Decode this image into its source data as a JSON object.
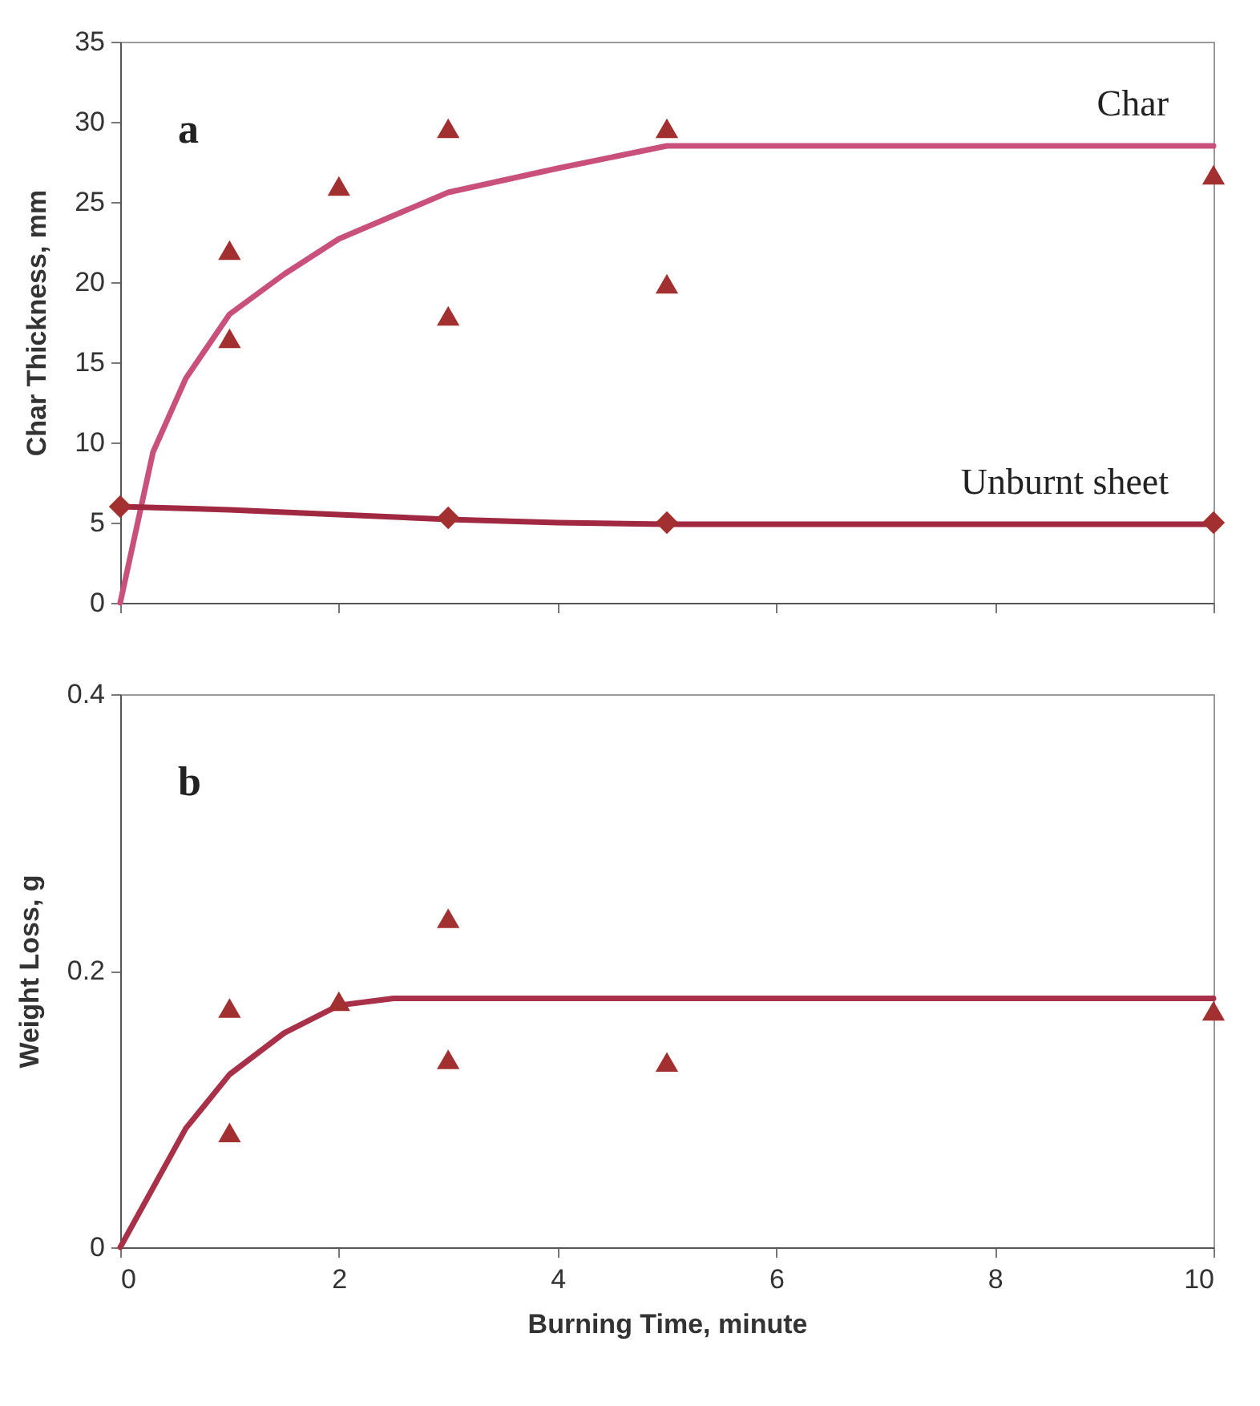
{
  "chart_data": [
    {
      "type": "scatter",
      "ylabel": "Char Thickness, mm",
      "xlim": [
        0,
        10
      ],
      "xticks": [
        0,
        2,
        4,
        6,
        8,
        10
      ],
      "ylim": [
        0,
        35
      ],
      "yticks": [
        0,
        5,
        10,
        15,
        20,
        25,
        30,
        35
      ],
      "tick_labels": "y",
      "grid": false,
      "annotations": [
        "a"
      ],
      "series": [
        {
          "name": "Char",
          "type": "line",
          "marker": "none",
          "color": "#c8507a",
          "x": [
            0,
            0.3,
            0.6,
            1,
            1.5,
            2,
            3,
            4,
            5,
            10
          ],
          "values": [
            0,
            9.4,
            14,
            18,
            20.5,
            22.7,
            25.6,
            27.1,
            28.5,
            28.5
          ]
        },
        {
          "marker": "triangle",
          "color": "#a33030",
          "x": [
            1,
            1,
            2,
            3,
            3,
            5,
            5,
            10
          ],
          "values": [
            22,
            16.5,
            26,
            29.6,
            17.9,
            29.6,
            19.9,
            26.7
          ]
        },
        {
          "name": "Unburnt sheet",
          "type": "line",
          "marker": "none",
          "color": "#a02840",
          "x": [
            0,
            1,
            2,
            3,
            4,
            5,
            10
          ],
          "values": [
            6,
            5.8,
            5.5,
            5.2,
            5,
            4.9,
            4.9
          ]
        },
        {
          "type": "scatter",
          "marker": "diamond",
          "color": "#a33030",
          "x": [
            0,
            3,
            5,
            10
          ],
          "values": [
            6,
            5.3,
            5,
            5
          ]
        }
      ]
    },
    {
      "type": "scatter",
      "xlabel": "Burning Time, minute",
      "ylabel": "Weight Loss, g",
      "xlim": [
        0,
        10
      ],
      "xticks": [
        0,
        2,
        4,
        6,
        8,
        10
      ],
      "ylim": [
        0,
        0.4
      ],
      "yticks": [
        0,
        0.2,
        0.4
      ],
      "grid": false,
      "annotations": [
        "b"
      ],
      "series": [
        {
          "type": "line",
          "marker": "none",
          "color": "#a83048",
          "x": [
            0,
            0.6,
            1,
            1.5,
            2,
            2.5,
            10
          ],
          "values": [
            0,
            0.086,
            0.125,
            0.155,
            0.175,
            0.18,
            0.18
          ]
        },
        {
          "marker": "triangle",
          "color": "#a33030",
          "x": [
            1,
            1,
            2,
            3,
            3,
            5,
            10
          ],
          "values": [
            0.173,
            0.083,
            0.178,
            0.238,
            0.136,
            0.134,
            0.171
          ]
        }
      ]
    }
  ]
}
